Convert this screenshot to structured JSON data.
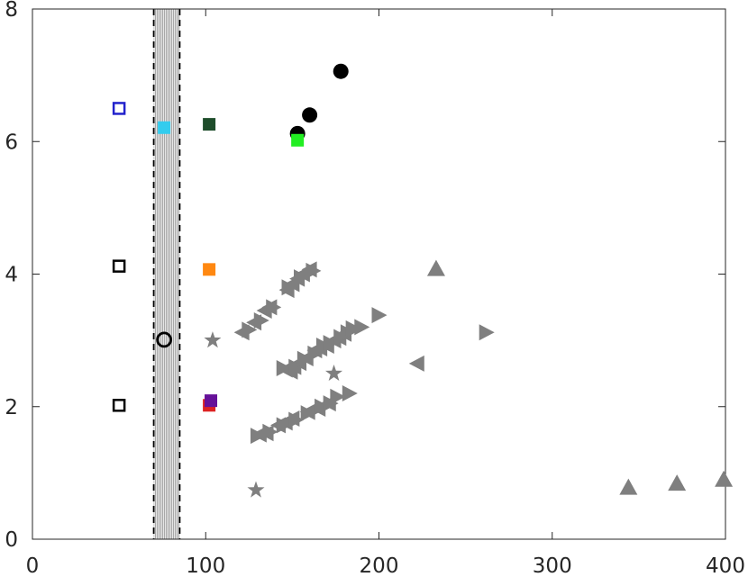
{
  "chart_data": {
    "type": "scatter",
    "title": "",
    "xlabel": "",
    "ylabel": "",
    "xlim": [
      0,
      400
    ],
    "ylim": [
      0,
      8
    ],
    "xticks": [
      "0",
      "100",
      "200",
      "300",
      "400"
    ],
    "yticks": [
      "0",
      "2",
      "4",
      "6",
      "8"
    ],
    "xtick_values": [
      0,
      100,
      200,
      300,
      400
    ],
    "ytick_values": [
      0,
      2,
      4,
      6,
      8
    ],
    "grid": false,
    "shaded_band": {
      "x_from": 70,
      "x_to": 85,
      "style": "dashed-edges-hatched"
    },
    "colors": {
      "gray": "#7f7f7f",
      "black": "#000000",
      "blue": "#2222cc",
      "cyan": "#33ccee",
      "dark_green": "#1e4d2b",
      "bright_green": "#22ee22",
      "orange": "#ff8811",
      "red": "#dd2222",
      "purple": "#661199"
    },
    "series": [
      {
        "marker": "open-square",
        "color": "#000000",
        "points": [
          [
            50,
            4.12
          ],
          [
            50,
            2.02
          ]
        ]
      },
      {
        "marker": "open-square",
        "color": "#2222cc",
        "points": [
          [
            50,
            6.5
          ]
        ]
      },
      {
        "marker": "filled-square",
        "color": "#33ccee",
        "points": [
          [
            76,
            6.21
          ]
        ]
      },
      {
        "marker": "open-circle",
        "color": "#000000",
        "points": [
          [
            76,
            3.01
          ]
        ]
      },
      {
        "marker": "filled-square",
        "color": "#1e4d2b",
        "points": [
          [
            102,
            6.26
          ]
        ]
      },
      {
        "marker": "filled-square",
        "color": "#ff8811",
        "points": [
          [
            102,
            4.07
          ]
        ]
      },
      {
        "marker": "filled-square",
        "color": "#dd2222",
        "points": [
          [
            102,
            2.02
          ]
        ]
      },
      {
        "marker": "filled-square",
        "color": "#661199",
        "points": [
          [
            103,
            2.09
          ]
        ]
      },
      {
        "marker": "filled-circle",
        "color": "#000000",
        "points": [
          [
            153,
            6.12
          ],
          [
            160,
            6.4
          ],
          [
            178,
            7.06
          ]
        ]
      },
      {
        "marker": "filled-square",
        "color": "#22ee22",
        "points": [
          [
            153,
            6.02
          ]
        ]
      },
      {
        "marker": "star",
        "color": "#7f7f7f",
        "points": [
          [
            104,
            3.0
          ],
          [
            129,
            0.74
          ],
          [
            174,
            2.5
          ]
        ]
      },
      {
        "marker": "triangle-up",
        "color": "#7f7f7f",
        "points": [
          [
            233,
            4.08
          ],
          [
            344,
            0.78
          ],
          [
            372,
            0.84
          ],
          [
            399,
            0.9
          ]
        ]
      },
      {
        "marker": "triangle-left",
        "color": "#7f7f7f",
        "points": [
          [
            121,
            3.12
          ],
          [
            128,
            3.27
          ],
          [
            134,
            3.45
          ],
          [
            137,
            3.5
          ],
          [
            147,
            3.76
          ],
          [
            150,
            3.85
          ],
          [
            153,
            3.93
          ],
          [
            156,
            4.0
          ],
          [
            160,
            4.07
          ],
          [
            146,
            2.56
          ],
          [
            149,
            2.53
          ],
          [
            151,
            2.6
          ],
          [
            154,
            2.66
          ],
          [
            158,
            2.73
          ],
          [
            163,
            2.85
          ],
          [
            166,
            2.88
          ],
          [
            170,
            2.92
          ],
          [
            174,
            3.0
          ],
          [
            177,
            3.04
          ],
          [
            180,
            3.1
          ],
          [
            222,
            2.65
          ],
          [
            131,
            1.58
          ],
          [
            135,
            1.6
          ],
          [
            142,
            1.72
          ],
          [
            146,
            1.76
          ],
          [
            150,
            1.82
          ],
          [
            159,
            1.92
          ],
          [
            165,
            1.97
          ],
          [
            171,
            2.05
          ]
        ]
      },
      {
        "marker": "triangle-right",
        "color": "#7f7f7f",
        "points": [
          [
            125,
            3.16
          ],
          [
            132,
            3.3
          ],
          [
            139,
            3.5
          ],
          [
            145,
            2.58
          ],
          [
            148,
            3.8
          ],
          [
            152,
            2.6
          ],
          [
            155,
            3.95
          ],
          [
            157,
            2.72
          ],
          [
            162,
            4.05
          ],
          [
            163,
            2.8
          ],
          [
            168,
            2.92
          ],
          [
            172,
            2.96
          ],
          [
            178,
            3.05
          ],
          [
            182,
            3.12
          ],
          [
            185,
            3.18
          ],
          [
            190,
            3.2
          ],
          [
            200,
            3.38
          ],
          [
            262,
            3.12
          ],
          [
            130,
            1.56
          ],
          [
            137,
            1.62
          ],
          [
            145,
            1.72
          ],
          [
            152,
            1.8
          ],
          [
            159,
            1.9
          ],
          [
            167,
            2.0
          ],
          [
            172,
            2.05
          ],
          [
            176,
            2.15
          ],
          [
            183,
            2.2
          ]
        ]
      }
    ]
  }
}
